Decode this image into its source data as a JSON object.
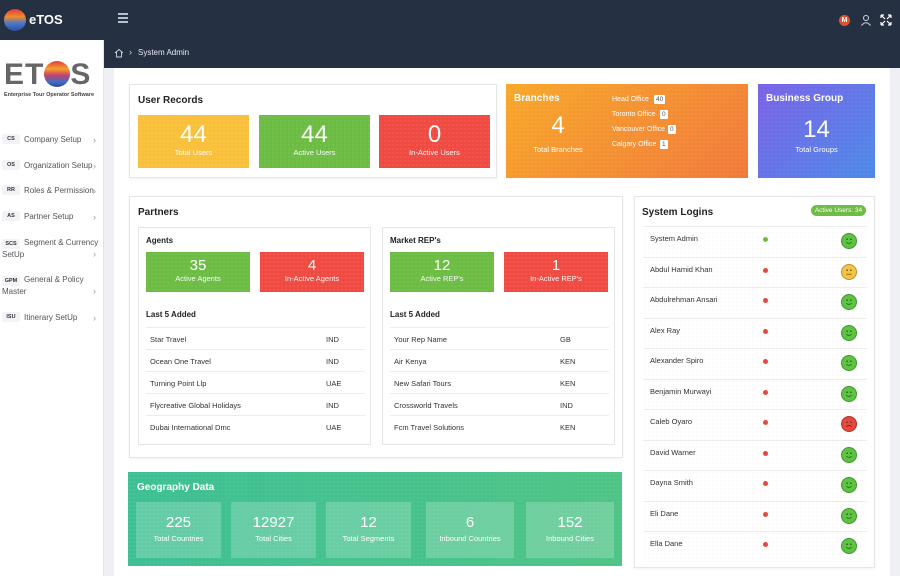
{
  "app": {
    "title": "eTOS",
    "avatar_letter": "M"
  },
  "brand": {
    "word_left": "ET",
    "word_right": "S",
    "subtitle": "Enterprise Tour Operator Software"
  },
  "breadcrumb": {
    "current": "System Admin"
  },
  "sidebar": {
    "items": [
      {
        "abbr": "CS",
        "label": "Company Setup"
      },
      {
        "abbr": "OS",
        "label": "Organization Setup"
      },
      {
        "abbr": "RR",
        "label": "Roles & Permission"
      },
      {
        "abbr": "AS",
        "label": "Partner Setup"
      },
      {
        "abbr": "SCS",
        "label": "Segment & Currency",
        "label2": "SetUp"
      },
      {
        "abbr": "GPM",
        "label": "General & Policy",
        "label2": "Master"
      },
      {
        "abbr": "ISU",
        "label": "Itinerary SetUp"
      }
    ]
  },
  "user_records": {
    "title": "User Records",
    "total": {
      "value": "44",
      "label": "Total Users"
    },
    "active": {
      "value": "44",
      "label": "Active Users"
    },
    "inactive": {
      "value": "0",
      "label": "In-Active Users"
    }
  },
  "branches": {
    "title": "Branches",
    "total": "4",
    "total_label": "Total Branches",
    "offices": [
      {
        "name": "Head Office",
        "count": "40"
      },
      {
        "name": "Toronto Office",
        "count": "0"
      },
      {
        "name": "Vancouver Office",
        "count": "0"
      },
      {
        "name": "Calgary Office",
        "count": "1"
      }
    ]
  },
  "business_group": {
    "title": "Business Group",
    "total": "14",
    "total_label": "Total Groups"
  },
  "partners": {
    "title": "Partners",
    "agents": {
      "title": "Agents",
      "active": {
        "value": "35",
        "label": "Active Agents"
      },
      "inactive": {
        "value": "4",
        "label": "In-Active Agents"
      },
      "last_title": "Last 5 Added",
      "rows": [
        {
          "name": "Star Travel",
          "code": "IND"
        },
        {
          "name": "Ocean One Travel",
          "code": "IND"
        },
        {
          "name": "Turning Point Llp",
          "code": "UAE"
        },
        {
          "name": "Flycreative Global Holidays",
          "code": "IND"
        },
        {
          "name": "Dubai International Dmc",
          "code": "UAE"
        }
      ]
    },
    "reps": {
      "title": "Market REP's",
      "active": {
        "value": "12",
        "label": "Active REP's"
      },
      "inactive": {
        "value": "1",
        "label": "In-Active REP's"
      },
      "last_title": "Last 5 Added",
      "rows": [
        {
          "name": "Your Rep Name",
          "code": "GB"
        },
        {
          "name": "Air Kenya",
          "code": "KEN"
        },
        {
          "name": "New Safari Tours",
          "code": "KEN"
        },
        {
          "name": "Crossworld Travels",
          "code": "IND"
        },
        {
          "name": "Fcm Travel Solutions",
          "code": "KEN"
        }
      ]
    }
  },
  "geography": {
    "title": "Geography Data",
    "boxes": [
      {
        "value": "225",
        "label": "Total Countries"
      },
      {
        "value": "12927",
        "label": "Total Cities"
      },
      {
        "value": "12",
        "label": "Total Segments"
      },
      {
        "value": "6",
        "label": "Inbound Countries"
      },
      {
        "value": "152",
        "label": "Inbound Cities"
      }
    ]
  },
  "system_logins": {
    "title": "System Logins",
    "badge": "Active Users: 34",
    "colors": {
      "online": "#6dbd45",
      "offline": "#e8463f",
      "happy": "#5cc441",
      "neutral": "#f5c444",
      "sad": "#e8473d"
    },
    "rows": [
      {
        "name": "System Admin",
        "online": true,
        "mood": "happy"
      },
      {
        "name": "Abdul Hamid Khan",
        "online": false,
        "mood": "neutral"
      },
      {
        "name": "Abdulrehman Ansari",
        "online": false,
        "mood": "happy"
      },
      {
        "name": "Alex Ray",
        "online": false,
        "mood": "happy"
      },
      {
        "name": "Alexander Spiro",
        "online": false,
        "mood": "happy"
      },
      {
        "name": "Benjamin Murwayi",
        "online": false,
        "mood": "happy"
      },
      {
        "name": "Caleb Oyaro",
        "online": false,
        "mood": "sad"
      },
      {
        "name": "David Warner",
        "online": false,
        "mood": "happy"
      },
      {
        "name": "Dayna Smith",
        "online": false,
        "mood": "happy"
      },
      {
        "name": "Eli Dane",
        "online": false,
        "mood": "happy"
      },
      {
        "name": "Ella Dane",
        "online": false,
        "mood": "happy"
      }
    ]
  }
}
